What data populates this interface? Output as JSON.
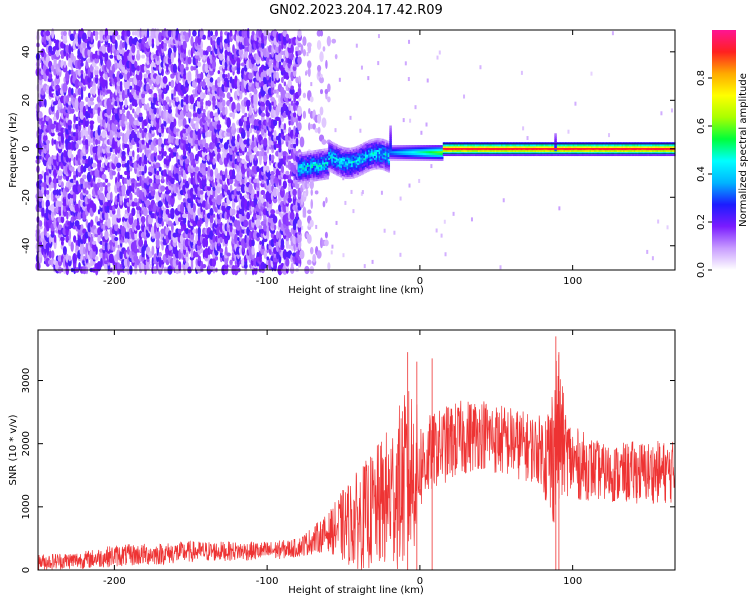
{
  "title": "GN02.2023.204.17.42.R09",
  "chart_data": [
    {
      "type": "heatmap",
      "xlabel": "Height of straight line (km)",
      "ylabel": "Frequency (Hz)",
      "xlim": [
        -250,
        167
      ],
      "ylim": [
        -50,
        49
      ],
      "xticks": [
        -200,
        -100,
        0,
        100
      ],
      "yticks": [
        -40,
        -20,
        0,
        20,
        40
      ],
      "colorbar": {
        "label": "Normalized spectral amplitude",
        "range": [
          0,
          1
        ],
        "ticks": [
          "0.0",
          "0.2",
          "0.4",
          "0.6",
          "0.8"
        ],
        "colors": [
          "#ffffff",
          "#c89cff",
          "#7a1cff",
          "#1c1cff",
          "#00b4ff",
          "#00ffff",
          "#00ff3a",
          "#aaff00",
          "#ffff00",
          "#ffaa00",
          "#ff2020",
          "#ff1493"
        ]
      },
      "features": {
        "noise_region_end_km": -78,
        "signal_onset_km": -80,
        "carrier_frequency_hz": 0,
        "peak_amplitude_region_km": [
          15,
          167
        ]
      }
    },
    {
      "type": "line",
      "xlabel": "Height of straight line (km)",
      "ylabel": "SNR (10 * v/v)",
      "xlim": [
        -250,
        167
      ],
      "ylim": [
        0,
        3800
      ],
      "xticks": [
        -200,
        -100,
        0,
        100
      ],
      "yticks": [
        0,
        1000,
        2000,
        3000
      ],
      "color": "#ee3333",
      "envelope": {
        "x": [
          -250,
          -220,
          -200,
          -170,
          -150,
          -120,
          -100,
          -80,
          -60,
          -50,
          -40,
          -30,
          -20,
          -10,
          -5,
          0,
          10,
          20,
          30,
          40,
          50,
          60,
          70,
          80,
          85,
          90,
          95,
          100,
          110,
          120,
          130,
          140,
          150,
          160,
          167
        ],
        "low": [
          0,
          20,
          50,
          80,
          120,
          150,
          150,
          200,
          300,
          100,
          0,
          0,
          0,
          0,
          100,
          900,
          1300,
          1400,
          1500,
          1600,
          1500,
          1450,
          1400,
          1350,
          600,
          800,
          1200,
          1100,
          1100,
          1100,
          1050,
          1050,
          1050,
          1050,
          1050
        ],
        "high": [
          250,
          300,
          400,
          430,
          460,
          450,
          450,
          500,
          900,
          1300,
          1600,
          1900,
          2300,
          2800,
          3000,
          2400,
          2500,
          2650,
          2700,
          2750,
          2650,
          2600,
          2500,
          2450,
          2800,
          3600,
          2600,
          2300,
          2150,
          2000,
          2000,
          2050,
          2050,
          2050,
          2050
        ]
      },
      "spikes": [
        {
          "x": -8,
          "y": 3450
        },
        {
          "x": -2,
          "y": 3300
        },
        {
          "x": 8,
          "y": 3350
        },
        {
          "x": 89,
          "y": 3700
        },
        {
          "x": 91,
          "y": 3450
        }
      ]
    }
  ]
}
